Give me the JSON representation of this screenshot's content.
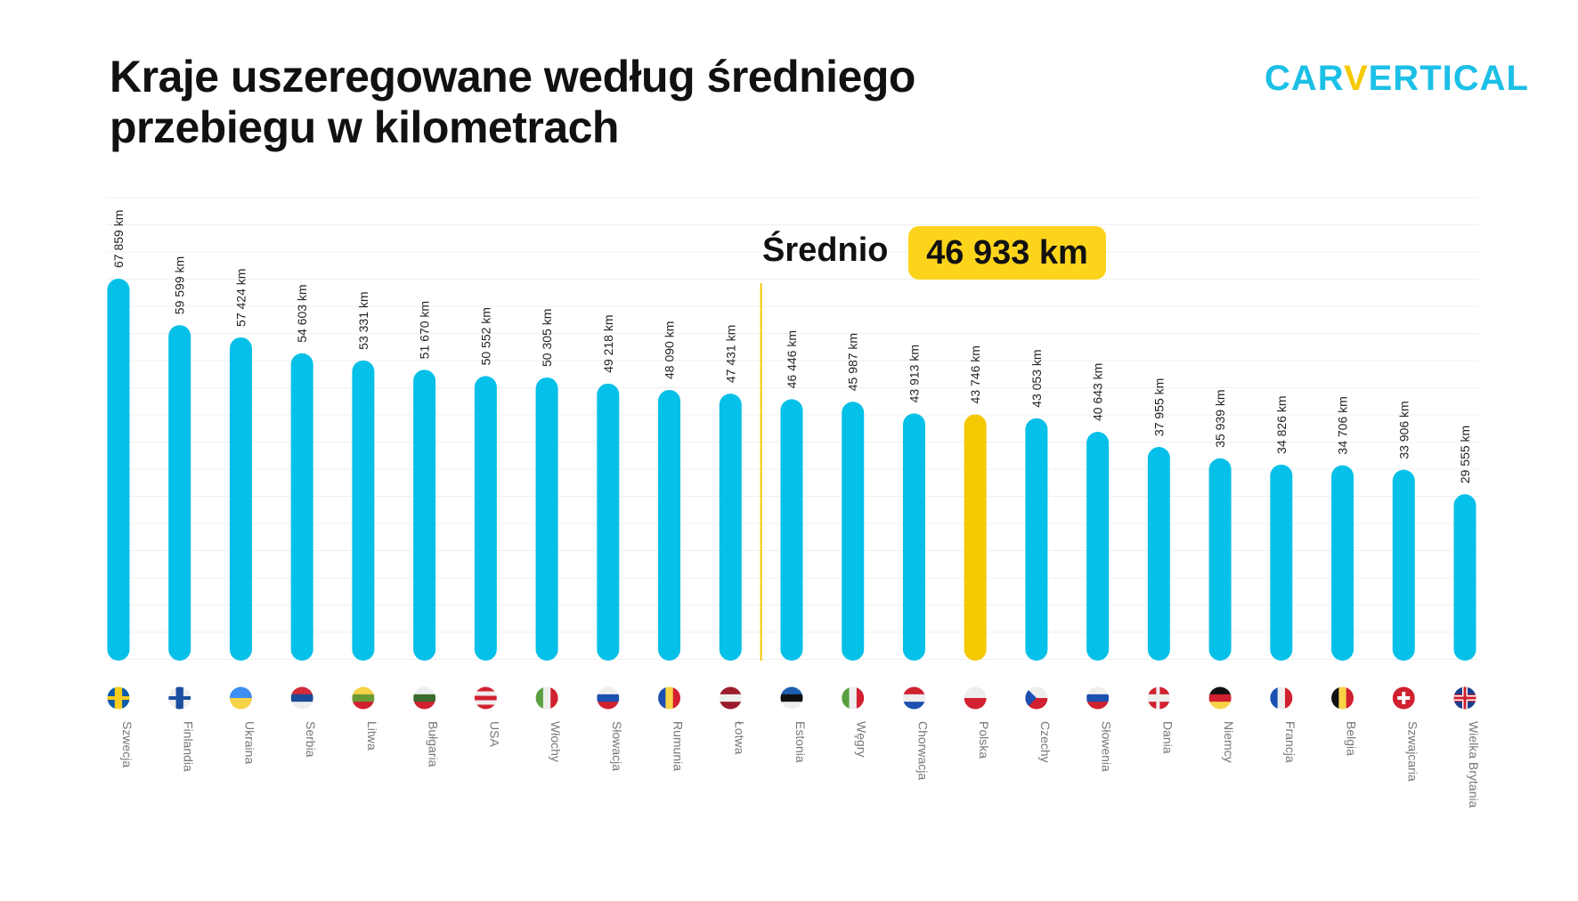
{
  "title_line1": "Kraje uszeregowane według średniego",
  "title_line2": "przebiegu w kilometrach",
  "logo": {
    "text_before": "CAR",
    "v": "V",
    "text_after": "ERTICAL"
  },
  "colors": {
    "bar": "#05c0e8",
    "highlight": "#f5c800",
    "average_line": "#f5c800",
    "badge": "#fdd41c",
    "label": "#777777"
  },
  "average": {
    "label": "Średnio",
    "value_text": "46 933 km",
    "value": 46933
  },
  "chart_data": {
    "type": "bar",
    "title": "Kraje uszeregowane według średniego przebiegu w kilometrach",
    "unit": "km",
    "highlight": "Polska",
    "grid": true,
    "categories": [
      "Szwecja",
      "Finlandia",
      "Ukraina",
      "Serbia",
      "Litwa",
      "Bułgaria",
      "USA",
      "Włochy",
      "Słowacja",
      "Rumunia",
      "Łotwa",
      "Estonia",
      "Węgry",
      "Chorwacja",
      "Polska",
      "Czechy",
      "Słowenia",
      "Dania",
      "Niemcy",
      "Francja",
      "Belgia",
      "Szwajcaria",
      "Wielka Brytania"
    ],
    "values": [
      67859,
      59599,
      57424,
      54603,
      53331,
      51670,
      50552,
      50305,
      49218,
      48090,
      47431,
      46446,
      45987,
      43913,
      43746,
      43053,
      40643,
      37955,
      35939,
      34826,
      34706,
      33906,
      29555
    ],
    "labels": [
      "67 859 km",
      "59 599 km",
      "57 424 km",
      "54 603 km",
      "53 331 km",
      "51 670 km",
      "50 552 km",
      "50 305 km",
      "49 218 km",
      "48 090 km",
      "47 431 km",
      "46 446 km",
      "45 987 km",
      "43 913 km",
      "43 746 km",
      "43 053 km",
      "40 643 km",
      "37 955 km",
      "35 939 km",
      "34 826 km",
      "34 706 km",
      "33 906 km",
      "29 555 km"
    ],
    "flags": [
      {
        "icon": "sweden-flag-icon",
        "dir": "v",
        "colors": [
          "#0a5ca8",
          "#f7cd1b",
          "#0a5ca8"
        ]
      },
      {
        "icon": "finland-flag-icon",
        "dir": "v",
        "colors": [
          "#eeeeee",
          "#1a4fa0",
          "#eeeeee"
        ]
      },
      {
        "icon": "ukraine-flag-icon",
        "dir": "h",
        "colors": [
          "#3d8ef0",
          "#f8d347"
        ]
      },
      {
        "icon": "serbia-flag-icon",
        "dir": "h",
        "colors": [
          "#d22a3a",
          "#1b4a97",
          "#eeeeee"
        ]
      },
      {
        "icon": "lithuania-flag-icon",
        "dir": "h",
        "colors": [
          "#f8d347",
          "#6a9a34",
          "#d1202f"
        ]
      },
      {
        "icon": "bulgaria-flag-icon",
        "dir": "h",
        "colors": [
          "#eeeeee",
          "#3b6a2a",
          "#d1202f"
        ]
      },
      {
        "icon": "usa-flag-icon",
        "dir": "h",
        "colors": [
          "#d1202f",
          "#eeeeee",
          "#d1202f",
          "#eeeeee",
          "#d1202f"
        ]
      },
      {
        "icon": "italy-flag-icon",
        "dir": "v",
        "colors": [
          "#5aa041",
          "#eeeeee",
          "#d1202f"
        ]
      },
      {
        "icon": "slovakia-flag-icon",
        "dir": "h",
        "colors": [
          "#eeeeee",
          "#1b4fb0",
          "#d1202f"
        ]
      },
      {
        "icon": "romania-flag-icon",
        "dir": "v",
        "colors": [
          "#1b4fb0",
          "#f8d347",
          "#d1202f"
        ]
      },
      {
        "icon": "latvia-flag-icon",
        "dir": "h",
        "colors": [
          "#9b1b2c",
          "#eeeeee",
          "#9b1b2c"
        ]
      },
      {
        "icon": "estonia-flag-icon",
        "dir": "h",
        "colors": [
          "#1c5fb0",
          "#111111",
          "#eeeeee"
        ]
      },
      {
        "icon": "hungary-flag-icon",
        "dir": "v",
        "colors": [
          "#5aa041",
          "#eeeeee",
          "#d1202f"
        ]
      },
      {
        "icon": "croatia-flag-icon",
        "dir": "h",
        "colors": [
          "#d1202f",
          "#eeeeee",
          "#1b4fb0"
        ]
      },
      {
        "icon": "poland-flag-icon",
        "dir": "h",
        "colors": [
          "#eeeeee",
          "#d1202f"
        ]
      },
      {
        "icon": "czechia-flag-icon",
        "dir": "h",
        "colors": [
          "#eeeeee",
          "#d1202f"
        ]
      },
      {
        "icon": "slovenia-flag-icon",
        "dir": "h",
        "colors": [
          "#eeeeee",
          "#1b4fb0",
          "#d1202f"
        ]
      },
      {
        "icon": "denmark-flag-icon",
        "dir": "h",
        "colors": [
          "#d1202f",
          "#eeeeee",
          "#d1202f"
        ]
      },
      {
        "icon": "germany-flag-icon",
        "dir": "h",
        "colors": [
          "#111111",
          "#d1202f",
          "#f8d347"
        ]
      },
      {
        "icon": "france-flag-icon",
        "dir": "v",
        "colors": [
          "#1b4fb0",
          "#eeeeee",
          "#d1202f"
        ]
      },
      {
        "icon": "belgium-flag-icon",
        "dir": "v",
        "colors": [
          "#111111",
          "#f8d347",
          "#d1202f"
        ]
      },
      {
        "icon": "switzerland-flag-icon",
        "dir": "h",
        "colors": [
          "#d1202f"
        ]
      },
      {
        "icon": "uk-flag-icon",
        "dir": "h",
        "colors": [
          "#1b3f8f",
          "#d1202f",
          "#1b3f8f"
        ]
      }
    ]
  }
}
